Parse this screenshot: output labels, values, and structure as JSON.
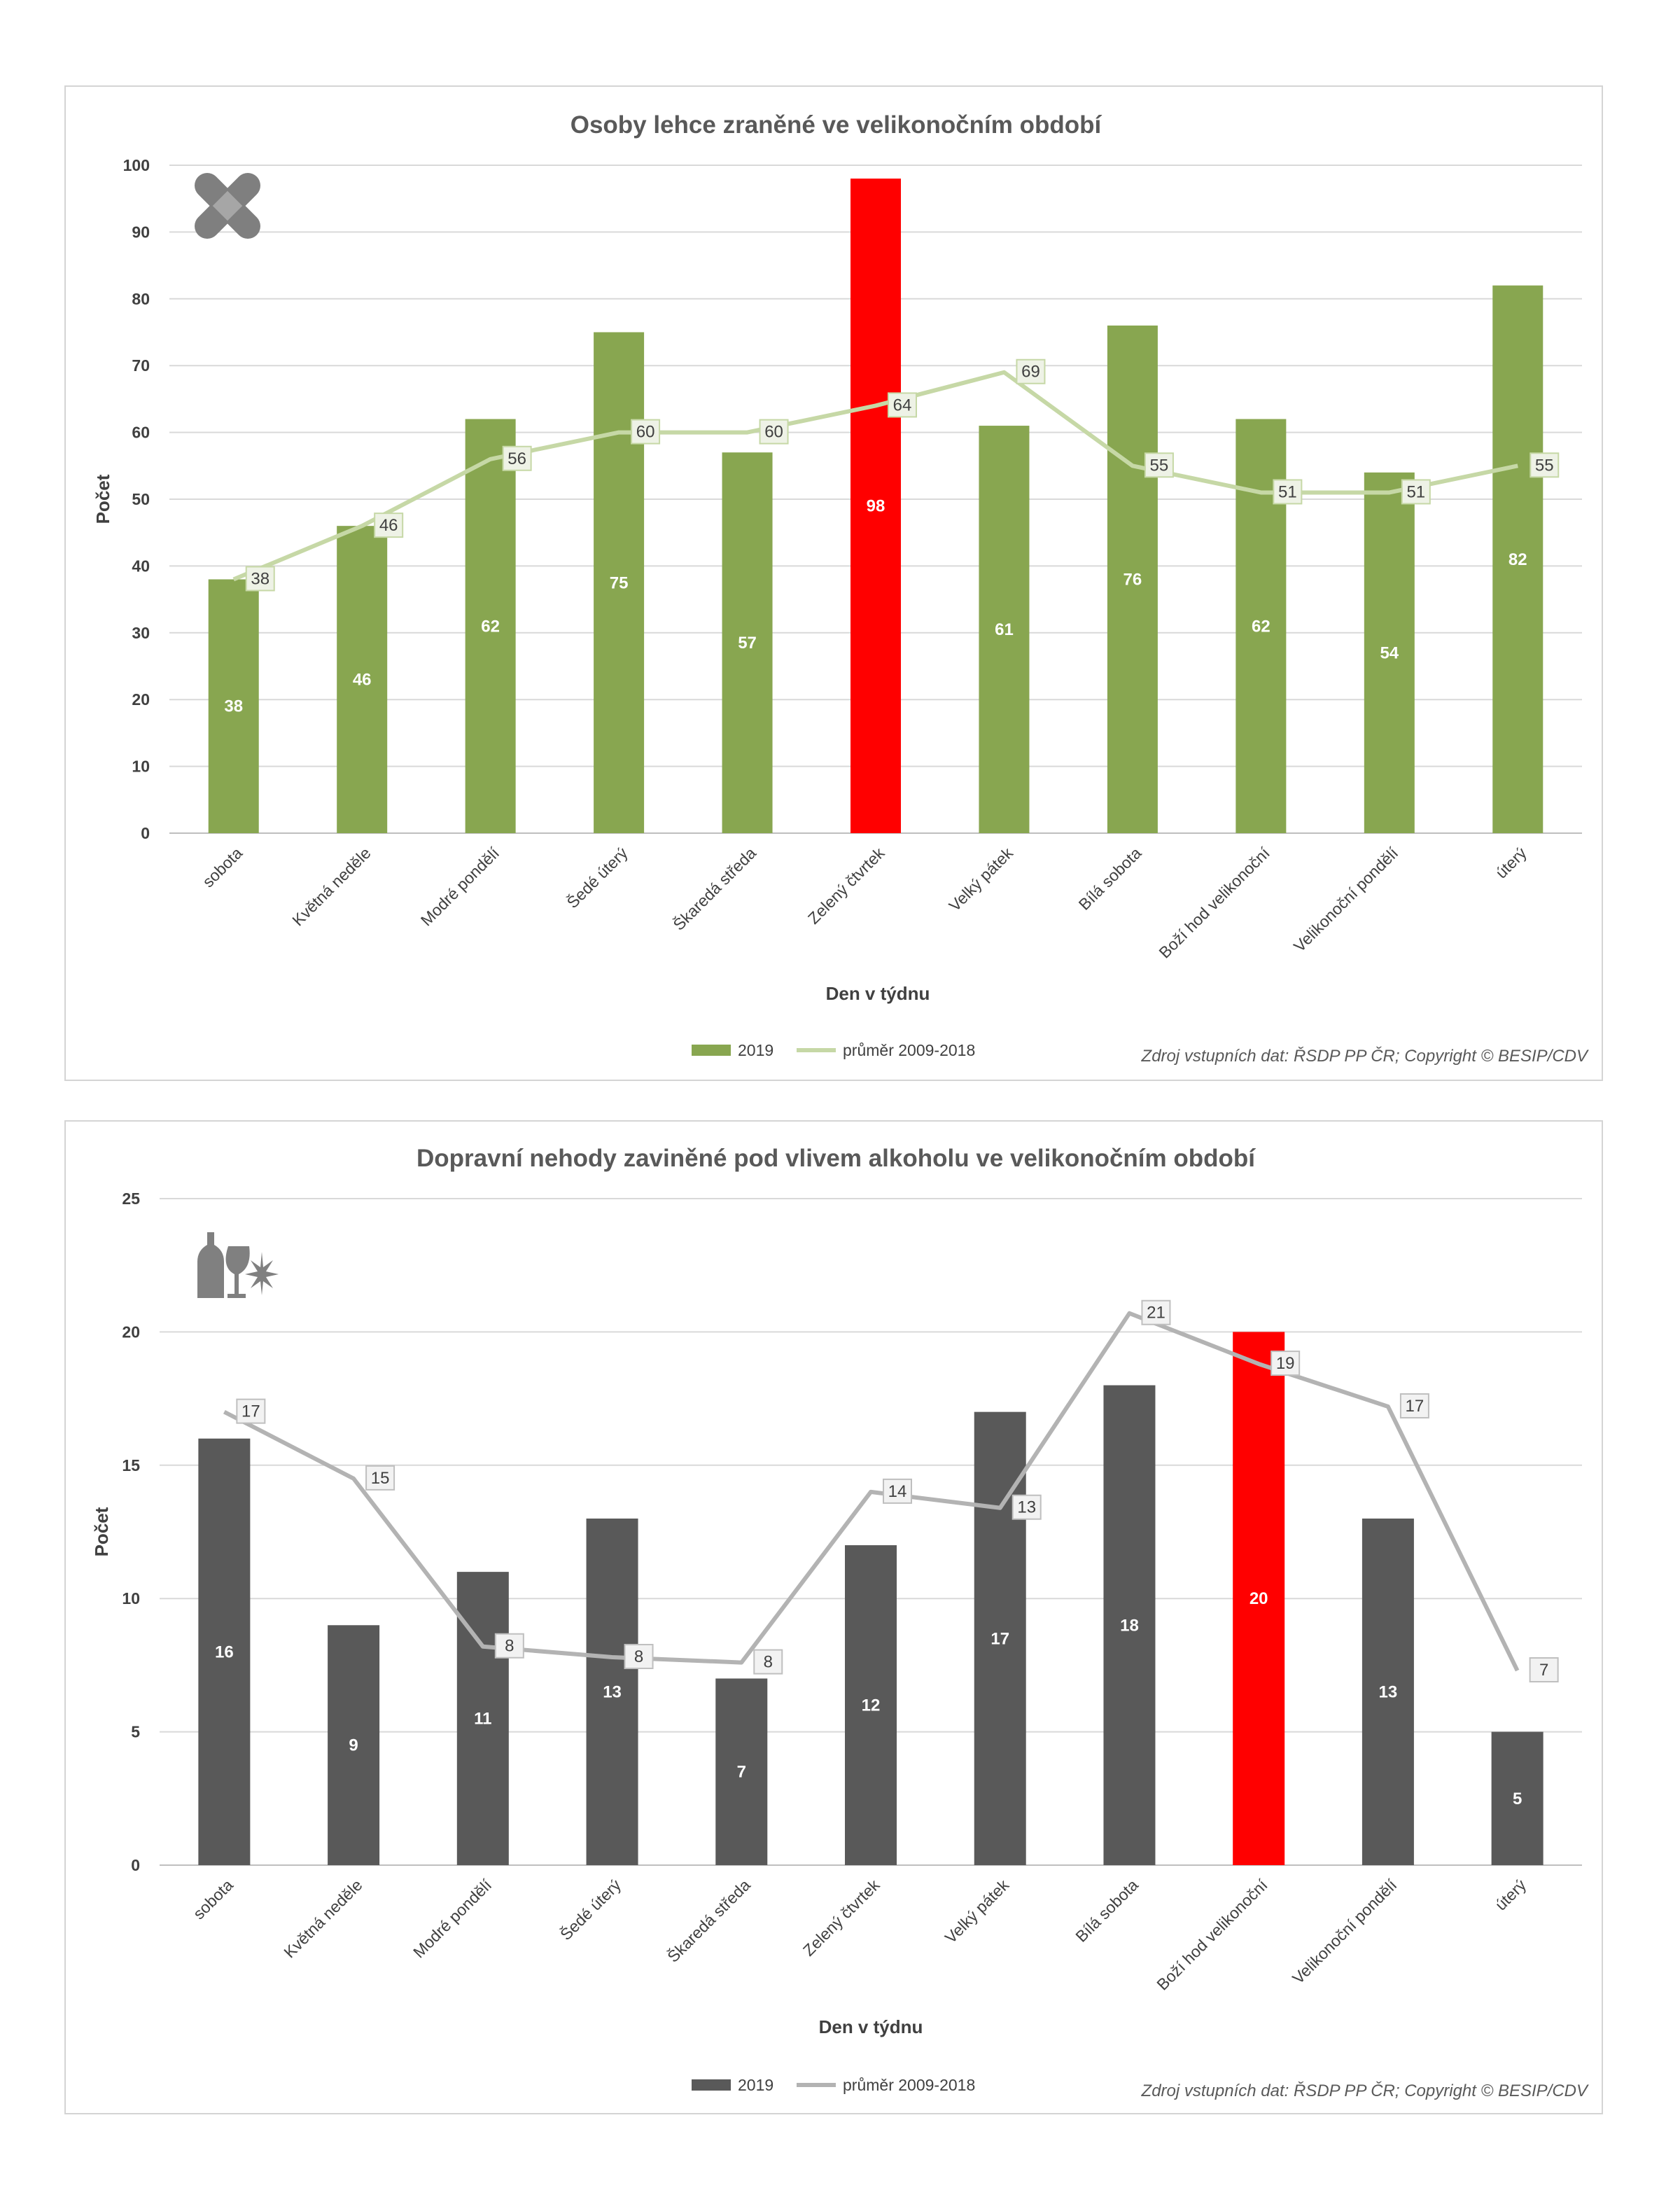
{
  "chart_data": [
    {
      "type": "bar",
      "title": "Osoby lehce zraněné ve velikonočním období",
      "xlabel": "Den v týdnu",
      "ylabel": "Počet",
      "ylim": [
        0,
        100
      ],
      "ytick_step": 10,
      "grid": true,
      "legend_position": "bottom",
      "source": "Zdroj vstupních dat: ŘSDP PP ČR; Copyright © BESIP/CDV",
      "icon": "bandage-icon",
      "categories": [
        "sobota",
        "Květná neděle",
        "Modré pondělí",
        "Šedé úterý",
        "Škaredá středa",
        "Zelený čtvrtek",
        "Velký pátek",
        "Bílá sobota",
        "Boží hod velikonoční",
        "Velikonoční pondělí",
        "úterý"
      ],
      "highlight_index": 5,
      "series": [
        {
          "name": "2019",
          "kind": "bar",
          "color": "#88A650",
          "values": [
            38,
            46,
            62,
            75,
            57,
            98,
            61,
            76,
            62,
            54,
            82
          ]
        },
        {
          "name": "průměr 2009-2018",
          "kind": "line",
          "color": "#C6D8A6",
          "values": [
            38,
            46,
            56,
            60,
            60,
            64,
            69,
            55,
            51,
            51,
            55
          ]
        }
      ],
      "highlight_color": "#FF0000",
      "label_box_fill": "#EEF2E6",
      "label_box_stroke": "#C6D8A6"
    },
    {
      "type": "bar",
      "title": "Dopravní nehody zaviněné pod vlivem alkoholu ve velikonočním období",
      "xlabel": "Den v týdnu",
      "ylabel": "Počet",
      "ylim": [
        0,
        25
      ],
      "ytick_step": 5,
      "grid": true,
      "legend_position": "bottom",
      "source": "Zdroj vstupních dat: ŘSDP PP ČR; Copyright © BESIP/CDV",
      "icon": "alcohol-drugs-icon",
      "categories": [
        "sobota",
        "Květná neděle",
        "Modré pondělí",
        "Šedé úterý",
        "Škaredá středa",
        "Zelený čtvrtek",
        "Velký pátek",
        "Bílá sobota",
        "Boží hod velikonoční",
        "Velikonoční pondělí",
        "úterý"
      ],
      "highlight_index": 8,
      "series": [
        {
          "name": "2019",
          "kind": "bar",
          "color": "#595959",
          "values": [
            16,
            9,
            11,
            13,
            7,
            12,
            17,
            18,
            20,
            13,
            5
          ]
        },
        {
          "name": "průměr 2009-2018",
          "kind": "line",
          "color": "#B3B3B3",
          "values": [
            17,
            15,
            8,
            8,
            8,
            14,
            13,
            21,
            19,
            17,
            7
          ],
          "plot_values": [
            17,
            14.5,
            8.2,
            7.8,
            7.6,
            14,
            13.4,
            20.7,
            18.8,
            17.2,
            7.3
          ]
        }
      ],
      "highlight_color": "#FF0000",
      "label_box_fill": "#F2F2F2",
      "label_box_stroke": "#BFBFBF"
    }
  ]
}
